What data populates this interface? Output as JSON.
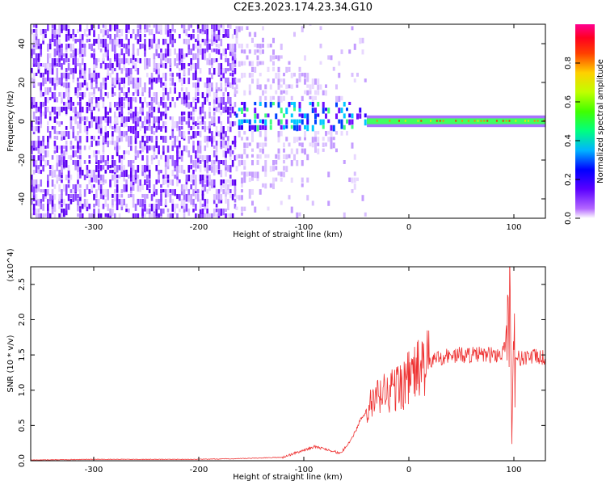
{
  "title": "C2E3.2023.174.23.34.G10",
  "chart_data": [
    {
      "type": "heatmap",
      "name": "spectrogram",
      "xlabel": "Height of straight line (km)",
      "ylabel": "Frequency (Hz)",
      "xlim": [
        -360,
        130
      ],
      "ylim": [
        -50,
        50
      ],
      "x_ticks": [
        -300,
        -200,
        -100,
        0,
        100
      ],
      "y_ticks": [
        -40,
        -20,
        0,
        20,
        40
      ],
      "colorbar": {
        "label": "Normalized spectral amplitude",
        "range": [
          0,
          1
        ],
        "ticks": [
          "0.0",
          "0.2",
          "0.4",
          "0.6",
          "0.8"
        ],
        "tick_values": [
          0,
          0.2,
          0.4,
          0.6,
          0.8
        ],
        "colors": [
          "#ffffff",
          "#8a2be2",
          "#3200ff",
          "#0000ff",
          "#00c8ff",
          "#00ff80",
          "#80ff00",
          "#ffff00",
          "#ff8000",
          "#ff0000",
          "#ff0080"
        ]
      },
      "features": [
        {
          "x_range": [
            -360,
            -165
          ],
          "description_value": "broadband noise across full frequency range"
        },
        {
          "x_range": [
            -165,
            -40
          ],
          "description_value": "narrowing band near 0 Hz"
        },
        {
          "x_range": [
            -40,
            130
          ],
          "description_value": "narrow high-amplitude line at 0 Hz"
        }
      ]
    },
    {
      "type": "line",
      "name": "snr",
      "xlabel": "Height of straight line (km)",
      "ylabel": "SNR (10 * v/v)",
      "y_multiplier": "(x10^4)",
      "xlim": [
        -360,
        130
      ],
      "ylim": [
        0,
        2.75
      ],
      "x_ticks": [
        -300,
        -200,
        -100,
        0,
        100
      ],
      "y_ticks": [
        "0.0",
        "0.5",
        "1.0",
        "1.5",
        "2.0",
        "2.5"
      ],
      "y_tick_values": [
        0,
        0.5,
        1.0,
        1.5,
        2.0,
        2.5
      ],
      "line_color": "#ee3333",
      "series": [
        {
          "x": [
            -360,
            -300,
            -200,
            -160,
            -120,
            -100,
            -90,
            -75,
            -65,
            -55,
            -45,
            -35,
            -25,
            -15,
            -5,
            5,
            15,
            25,
            35,
            50,
            65,
            80,
            90,
            95,
            97,
            98,
            100,
            105,
            115,
            130
          ],
          "y": [
            0.01,
            0.02,
            0.02,
            0.03,
            0.05,
            0.15,
            0.2,
            0.15,
            0.1,
            0.3,
            0.6,
            0.8,
            0.95,
            1.0,
            1.1,
            1.25,
            1.35,
            1.45,
            1.48,
            1.5,
            1.5,
            1.5,
            1.52,
            2.0,
            2.7,
            0.4,
            1.5,
            1.45,
            1.48,
            1.45
          ]
        }
      ]
    }
  ]
}
